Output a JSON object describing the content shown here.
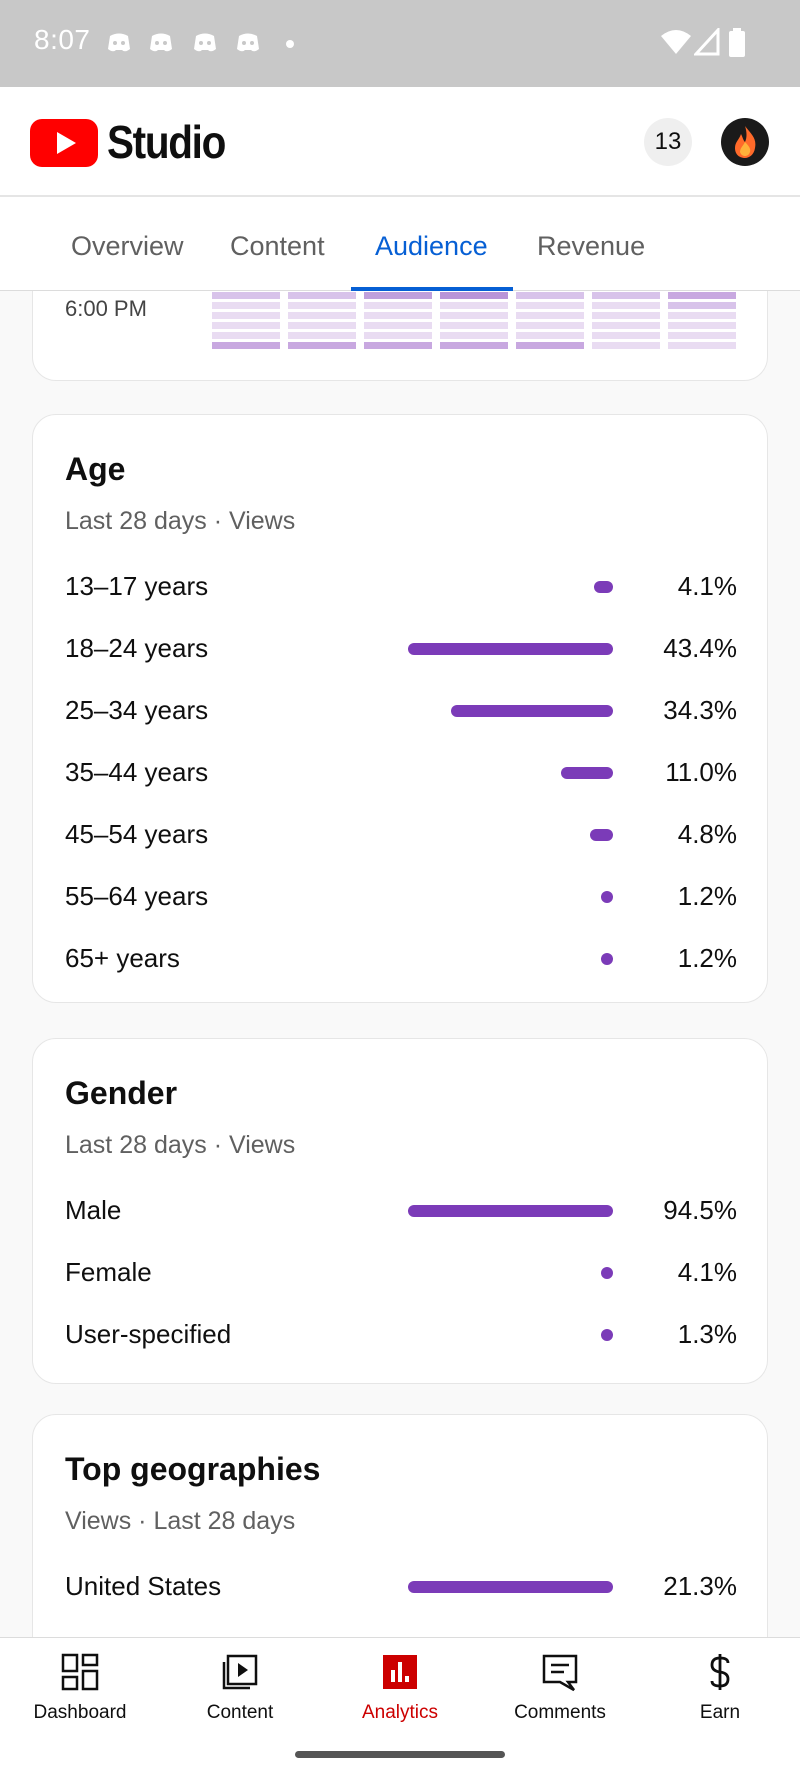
{
  "status_bar": {
    "time": "8:07"
  },
  "header": {
    "title": "Studio",
    "notification_count": "13"
  },
  "tabs": [
    {
      "label": "Overview"
    },
    {
      "label": "Content"
    },
    {
      "label": "Audience",
      "active": true
    },
    {
      "label": "Revenue"
    }
  ],
  "heatmap": {
    "time_label": "6:00 PM"
  },
  "age": {
    "title": "Age",
    "subtitle": "Last 28 days · Views",
    "rows": [
      {
        "label": "13–17 years",
        "value": "4.1%",
        "fraction": 0.041
      },
      {
        "label": "18–24 years",
        "value": "43.4%",
        "fraction": 0.434
      },
      {
        "label": "25–34 years",
        "value": "34.3%",
        "fraction": 0.343
      },
      {
        "label": "35–44 years",
        "value": "11.0%",
        "fraction": 0.11
      },
      {
        "label": "45–54 years",
        "value": "4.8%",
        "fraction": 0.048
      },
      {
        "label": "55–64 years",
        "value": "1.2%",
        "fraction": 0.012
      },
      {
        "label": "65+ years",
        "value": "1.2%",
        "fraction": 0.012
      }
    ]
  },
  "gender": {
    "title": "Gender",
    "subtitle": "Last 28 days · Views",
    "rows": [
      {
        "label": "Male",
        "value": "94.5%",
        "fraction": 0.945
      },
      {
        "label": "Female",
        "value": "4.1%",
        "fraction": 0.041
      },
      {
        "label": "User-specified",
        "value": "1.3%",
        "fraction": 0.013
      }
    ]
  },
  "geographies": {
    "title": "Top geographies",
    "subtitle": "Views · Last 28 days",
    "rows": [
      {
        "label": "United States",
        "value": "21.3%",
        "fraction": 0.213
      }
    ]
  },
  "bottom_nav": [
    {
      "label": "Dashboard",
      "icon": "dashboard-icon"
    },
    {
      "label": "Content",
      "icon": "content-icon"
    },
    {
      "label": "Analytics",
      "icon": "analytics-icon",
      "active": true
    },
    {
      "label": "Comments",
      "icon": "comments-icon"
    },
    {
      "label": "Earn",
      "icon": "earn-icon"
    }
  ],
  "colors": {
    "accent_blue": "#065fd4",
    "bar_purple": "#7b3bb8",
    "brand_red": "#ff0000",
    "analytics_red": "#cc0000"
  }
}
